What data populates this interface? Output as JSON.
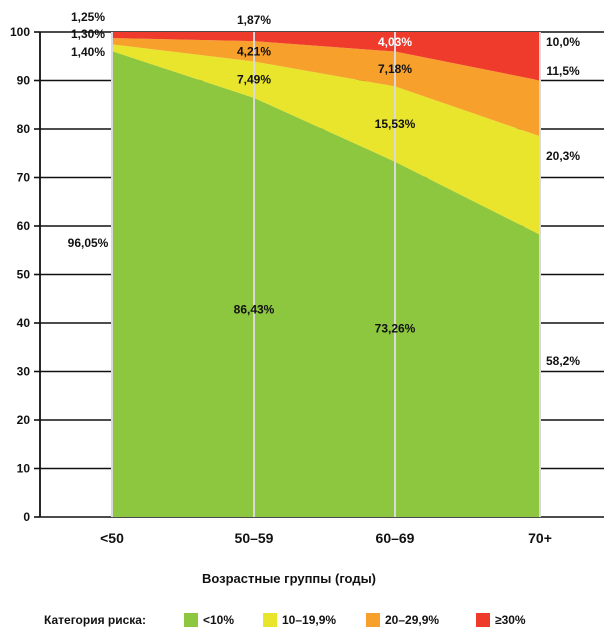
{
  "chart_data": {
    "type": "area",
    "stacked": true,
    "categories": [
      "<50",
      "50–59",
      "60–69",
      "70+"
    ],
    "xlabel": "Возрастные группы (годы)",
    "ylim": [
      0,
      100
    ],
    "yticks": [
      "0",
      "10",
      "20",
      "30",
      "40",
      "50",
      "60",
      "70",
      "80",
      "90",
      "100"
    ],
    "grid": "horizontal",
    "legend": {
      "title": "Категория риска:",
      "position": "bottom",
      "items": [
        "<10%",
        "10–19,9%",
        "20–29,9%",
        "≥30%"
      ]
    },
    "series": [
      {
        "key": "lt10",
        "values": [
          96.05,
          86.43,
          73.26,
          58.2
        ],
        "color": "#8dc63f"
      },
      {
        "key": "s10_19",
        "values": [
          1.4,
          7.49,
          15.53,
          20.3
        ],
        "color": "#e8e52c"
      },
      {
        "key": "s20_29",
        "values": [
          1.3,
          4.21,
          7.18,
          11.5
        ],
        "color": "#f7a02c"
      },
      {
        "key": "ge30",
        "values": [
          1.25,
          1.87,
          4.03,
          10.0
        ],
        "color": "#ef3b2c"
      }
    ],
    "labels_left": [
      "1,25%",
      "1,30%",
      "1,40%",
      "96,05%"
    ],
    "labels_right": [
      "10,0%",
      "11,5%",
      "20,3%",
      "58,2%"
    ],
    "labels_inner": [
      {
        "category": "50–59",
        "series": "ge30",
        "text": "1,87%"
      },
      {
        "category": "50–59",
        "series": "s20_29",
        "text": "4,21%"
      },
      {
        "category": "50–59",
        "series": "s10_19",
        "text": "7,49%"
      },
      {
        "category": "50–59",
        "series": "lt10",
        "text": "86,43%"
      },
      {
        "category": "60–69",
        "series": "ge30",
        "text": "4,03%"
      },
      {
        "category": "60–69",
        "series": "s20_29",
        "text": "7,18%"
      },
      {
        "category": "60–69",
        "series": "s10_19",
        "text": "15,53%"
      },
      {
        "category": "60–69",
        "series": "lt10",
        "text": "73,26%"
      }
    ]
  }
}
